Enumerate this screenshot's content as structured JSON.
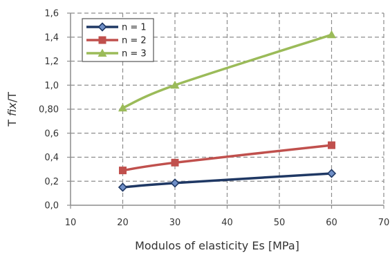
{
  "chart_data": {
    "type": "line",
    "xlabel": "Modulos of elasticity Es [MPa]",
    "ylabel": {
      "prefix": "T ",
      "italic": "fix",
      "suffix": "/T"
    },
    "xlim": [
      10,
      70
    ],
    "ylim": [
      0,
      1.6
    ],
    "x_ticks": [
      10,
      20,
      30,
      40,
      50,
      60,
      70
    ],
    "x_tick_labels": [
      "10",
      "20",
      "30",
      "40",
      "50",
      "60",
      "70"
    ],
    "y_ticks": [
      0,
      0.2,
      0.4,
      0.6,
      0.8,
      1.0,
      1.2,
      1.4,
      1.6
    ],
    "y_tick_labels": [
      "0,0",
      "0,2",
      "0,4",
      "0,6",
      "0,80",
      "1,0",
      "1,2",
      "1,4",
      "1,6"
    ],
    "grid": true,
    "grid_style": "dashed",
    "legend_position": "top-left",
    "x": [
      20,
      30,
      60
    ],
    "series": [
      {
        "name": "n = 1",
        "color": "#1f3864",
        "marker": "diamond",
        "values": [
          0.15,
          0.185,
          0.265
        ]
      },
      {
        "name": "n = 2",
        "color": "#c0504d",
        "marker": "square",
        "values": [
          0.29,
          0.355,
          0.5
        ]
      },
      {
        "name": "n = 3",
        "color": "#9bbb59",
        "marker": "triangle",
        "values": [
          0.81,
          1.0,
          1.42
        ]
      }
    ]
  }
}
